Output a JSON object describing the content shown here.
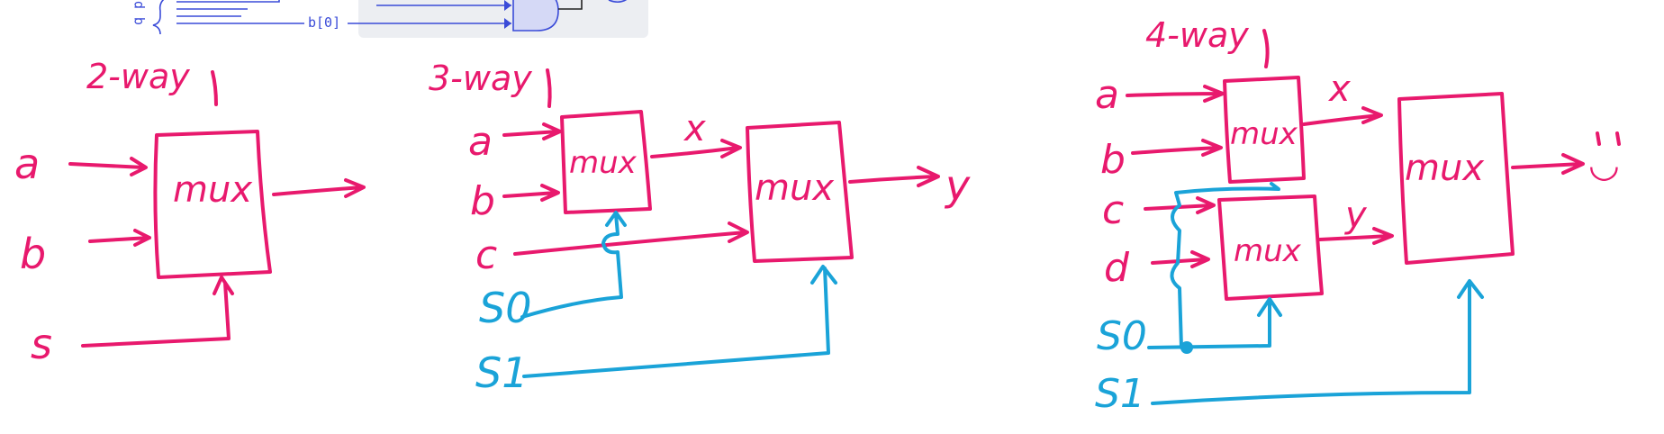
{
  "header_fragment": {
    "side_label": "q p",
    "bit_label": "b[0]"
  },
  "two_way": {
    "title": "2-way",
    "inputs": [
      "a",
      "b"
    ],
    "select": "s",
    "block": "mux"
  },
  "three_way": {
    "title": "3-way",
    "inputs": [
      "a",
      "b",
      "c"
    ],
    "selects": [
      "S0",
      "S1"
    ],
    "blocks": [
      "mux",
      "mux"
    ],
    "intermediate": "x",
    "output": "y"
  },
  "four_way": {
    "title": "4-way",
    "inputs": [
      "a",
      "b",
      "c",
      "d"
    ],
    "selects": [
      "S0",
      "S1"
    ],
    "blocks": [
      "mux",
      "mux",
      "mux"
    ],
    "intermediates": [
      "x",
      "y"
    ],
    "output": "◡"
  }
}
